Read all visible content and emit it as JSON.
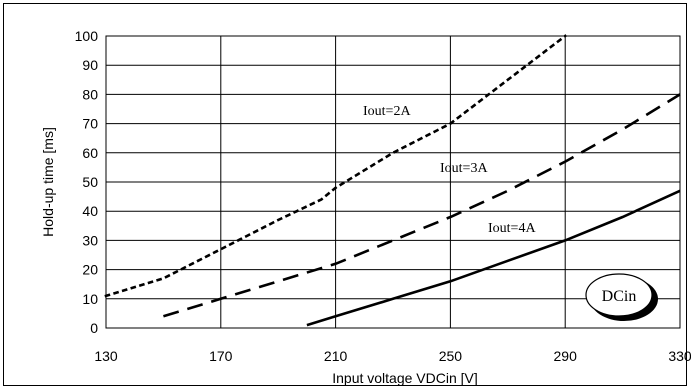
{
  "chart_data": {
    "type": "line",
    "title": "",
    "xlabel": "Input voltage VDCin [V]",
    "ylabel": "Hold-up time [ms]",
    "xlim": [
      130,
      330
    ],
    "ylim": [
      0,
      100
    ],
    "x_ticks": [
      130,
      170,
      210,
      250,
      290,
      330
    ],
    "y_ticks": [
      0,
      10,
      20,
      30,
      40,
      50,
      60,
      70,
      80,
      90,
      100
    ],
    "grid": true,
    "badge": "DCin",
    "series": [
      {
        "name": "Iout=2A",
        "style": "dotted",
        "points": [
          [
            130,
            11
          ],
          [
            150,
            17
          ],
          [
            170,
            27
          ],
          [
            190,
            37
          ],
          [
            205,
            44
          ],
          [
            210,
            48
          ],
          [
            230,
            60
          ],
          [
            250,
            70
          ],
          [
            270,
            85
          ],
          [
            290,
            100
          ]
        ]
      },
      {
        "name": "Iout=3A",
        "style": "dashed",
        "points": [
          [
            150,
            4
          ],
          [
            170,
            10
          ],
          [
            190,
            16
          ],
          [
            210,
            22
          ],
          [
            230,
            30
          ],
          [
            250,
            38
          ],
          [
            270,
            47
          ],
          [
            290,
            57
          ],
          [
            310,
            68
          ],
          [
            330,
            80
          ]
        ]
      },
      {
        "name": "Iout=4A",
        "style": "solid",
        "points": [
          [
            200,
            1
          ],
          [
            210,
            4
          ],
          [
            230,
            10
          ],
          [
            250,
            16
          ],
          [
            270,
            23
          ],
          [
            290,
            30
          ],
          [
            310,
            38
          ],
          [
            330,
            47
          ]
        ]
      }
    ]
  }
}
